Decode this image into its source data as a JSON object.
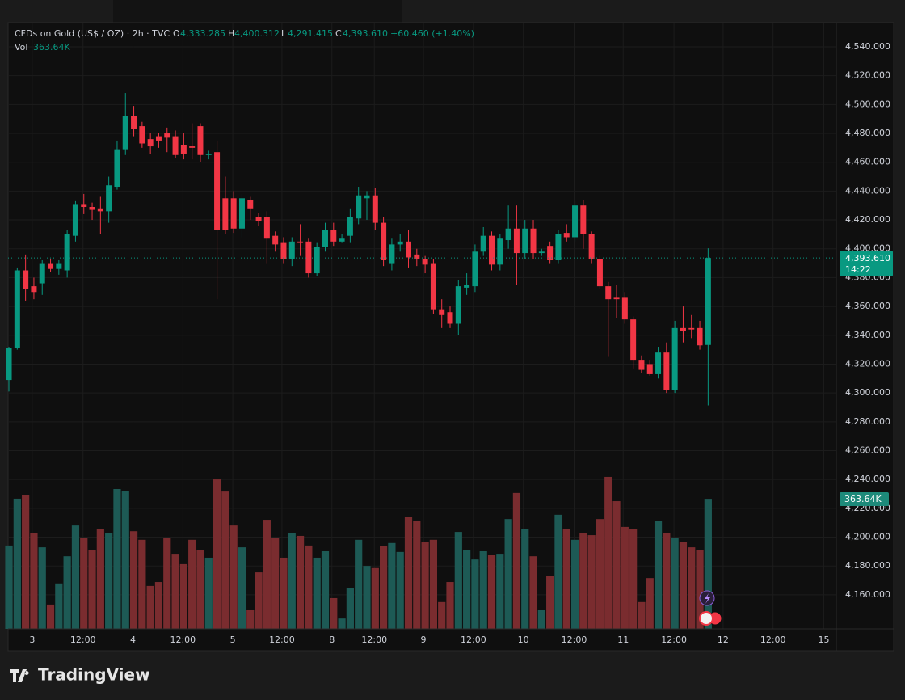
{
  "chart_data": {
    "type": "candlestick",
    "title": "CFDs on Gold (US$ / OZ) · 2h · TVC",
    "header": {
      "o_label": "O",
      "open": "4,333.285",
      "h_label": "H",
      "high": "4,400.312",
      "l_label": "L",
      "low": "4,291.415",
      "c_label": "C",
      "close": "4,393.610",
      "change": "+60.460 (+1.40%)",
      "vol_label": "Vol",
      "volume": "363.64K"
    },
    "last_price_label": "4,393.610",
    "countdown": "14:22",
    "brand": "TradingView",
    "up_color": "#089981",
    "down_color": "#f23645",
    "up_volume_color": "#1d5a55",
    "down_volume_color": "#7a2c2f",
    "grid": true,
    "open": [
      4309,
      4331,
      4385,
      4374,
      4376,
      4390,
      4386,
      4385,
      4409,
      4431,
      4429,
      4428,
      4426,
      4443,
      4469,
      4492,
      4485,
      4476,
      4478,
      4480,
      4478,
      4472,
      4471,
      4485,
      4465,
      4467,
      4435,
      4435,
      4414,
      4434,
      4422,
      4422,
      4409,
      4404,
      4393,
      4405,
      4405,
      4383,
      4401,
      4413,
      4405,
      4409,
      4421,
      4435,
      4437,
      4418,
      4390,
      4403,
      4405,
      4396,
      4393,
      4390,
      4358,
      4356,
      4348,
      4373,
      4374,
      4398,
      4409,
      4389,
      4406,
      4414,
      4397,
      4414,
      4397,
      4402,
      4392,
      4411,
      4408,
      4430,
      4410,
      4393,
      4374,
      4366,
      4366,
      4351,
      4323,
      4320,
      4313,
      4328,
      4302,
      4345,
      4345,
      4345,
      4333.285
    ],
    "high": [
      4332,
      4387,
      4396,
      4380,
      4392,
      4393,
      4392,
      4413,
      4433,
      4438,
      4432,
      4436,
      4450,
      4475,
      4508,
      4499,
      4488,
      4480,
      4480,
      4484,
      4482,
      4480,
      4487,
      4487,
      4468,
      4475,
      4450,
      4440,
      4438,
      4436,
      4425,
      4426,
      4412,
      4408,
      4408,
      4417,
      4407,
      4404,
      4418,
      4418,
      4410,
      4428,
      4443,
      4440,
      4442,
      4422,
      4407,
      4410,
      4413,
      4400,
      4395,
      4393,
      4365,
      4360,
      4378,
      4383,
      4403,
      4415,
      4412,
      4410,
      4430,
      4430,
      4420,
      4420,
      4400,
      4405,
      4413,
      4417,
      4433,
      4434,
      4412,
      4395,
      4377,
      4375,
      4370,
      4353,
      4326,
      4323,
      4332,
      4335,
      4350,
      4360,
      4354,
      4350,
      4400.312
    ],
    "low": [
      4301,
      4330,
      4364,
      4365,
      4368,
      4384,
      4382,
      4380,
      4405,
      4424,
      4420,
      4410,
      4418,
      4441,
      4465,
      4478,
      4470,
      4466,
      4470,
      4467,
      4463,
      4462,
      4462,
      4460,
      4462,
      4365,
      4410,
      4411,
      4408,
      4420,
      4416,
      4390,
      4398,
      4390,
      4388,
      4395,
      4380,
      4381,
      4398,
      4402,
      4404,
      4404,
      4417,
      4420,
      4413,
      4388,
      4385,
      4398,
      4387,
      4388,
      4383,
      4355,
      4345,
      4345,
      4340,
      4368,
      4370,
      4395,
      4385,
      4385,
      4400,
      4375,
      4393,
      4393,
      4395,
      4390,
      4390,
      4405,
      4405,
      4400,
      4390,
      4372,
      4325,
      4352,
      4348,
      4317,
      4314,
      4312,
      4310,
      4300,
      4300,
      4335,
      4338,
      4330,
      4291.415
    ],
    "close": [
      4331,
      4385,
      4372,
      4370,
      4390,
      4386,
      4390,
      4410,
      4431,
      4429,
      4427,
      4426,
      4444,
      4469,
      4492,
      4483,
      4473,
      4471,
      4475,
      4477,
      4465,
      4466,
      4470,
      4465,
      4466,
      4413,
      4413,
      4414,
      4435,
      4428,
      4419,
      4407,
      4403,
      4393,
      4405,
      4404,
      4383,
      4401,
      4413,
      4405,
      4407,
      4422,
      4437,
      4437,
      4418,
      4392,
      4403,
      4405,
      4394,
      4393,
      4389,
      4358,
      4354,
      4348,
      4374,
      4375,
      4398,
      4409,
      4389,
      4407,
      4414,
      4397,
      4414,
      4397,
      4398,
      4392,
      4410,
      4408,
      4430,
      4410,
      4393,
      4374,
      4365,
      4365,
      4351,
      4323,
      4316,
      4313,
      4328,
      4302,
      4345,
      4343,
      4344,
      4333,
      4393.61
    ],
    "volume": [
      233,
      364,
      373,
      267,
      228,
      68,
      127,
      203,
      289,
      255,
      221,
      278,
      267,
      391,
      386,
      273,
      249,
      120,
      131,
      255,
      210,
      181,
      249,
      221,
      199,
      418,
      384,
      289,
      228,
      52,
      158,
      305,
      255,
      199,
      267,
      260,
      233,
      199,
      217,
      86,
      29,
      113,
      249,
      176,
      170,
      231,
      240,
      215,
      312,
      301,
      244,
      249,
      75,
      131,
      271,
      221,
      194,
      217,
      206,
      210,
      307,
      380,
      278,
      203,
      52,
      149,
      319,
      278,
      249,
      267,
      262,
      307,
      425,
      357,
      285,
      278,
      75,
      142,
      301,
      267,
      255,
      244,
      228,
      221,
      363.64
    ],
    "ylim": [
      4136.4,
      4556.8
    ],
    "yticks": [
      {
        "value": 4160,
        "label": "4,160.000"
      },
      {
        "value": 4180,
        "label": "4,180.000"
      },
      {
        "value": 4200,
        "label": "4,200.000"
      },
      {
        "value": 4220,
        "label": "4,220.000"
      },
      {
        "value": 4240,
        "label": "4,240.000"
      },
      {
        "value": 4260,
        "label": "4,260.000"
      },
      {
        "value": 4280,
        "label": "4,280.000"
      },
      {
        "value": 4300,
        "label": "4,300.000"
      },
      {
        "value": 4320,
        "label": "4,320.000"
      },
      {
        "value": 4340,
        "label": "4,340.000"
      },
      {
        "value": 4360,
        "label": "4,360.000"
      },
      {
        "value": 4380,
        "label": "4,380.000"
      },
      {
        "value": 4400,
        "label": "4,400.000"
      },
      {
        "value": 4420,
        "label": "4,420.000"
      },
      {
        "value": 4440,
        "label": "4,440.000"
      },
      {
        "value": 4460,
        "label": "4,460.000"
      },
      {
        "value": 4480,
        "label": "4,480.000"
      },
      {
        "value": 4500,
        "label": "4,500.000"
      },
      {
        "value": 4520,
        "label": "4,520.000"
      },
      {
        "value": 4540,
        "label": "4,540.000"
      }
    ],
    "xlim": [
      -0.1,
      99.4
    ],
    "xticks": [
      {
        "value": 2.8,
        "label": "3"
      },
      {
        "value": 8.9,
        "label": "12:00"
      },
      {
        "value": 14.9,
        "label": "4"
      },
      {
        "value": 20.9,
        "label": "12:00"
      },
      {
        "value": 26.9,
        "label": "5"
      },
      {
        "value": 32.8,
        "label": "12:00"
      },
      {
        "value": 38.8,
        "label": "8"
      },
      {
        "value": 43.9,
        "label": "12:00"
      },
      {
        "value": 49.8,
        "label": "9"
      },
      {
        "value": 55.8,
        "label": "12:00"
      },
      {
        "value": 61.8,
        "label": "10"
      },
      {
        "value": 67.9,
        "label": "12:00"
      },
      {
        "value": 73.8,
        "label": "11"
      },
      {
        "value": 79.9,
        "label": "12:00"
      },
      {
        "value": 85.8,
        "label": "12"
      },
      {
        "value": 91.8,
        "label": "12:00"
      },
      {
        "value": 97.9,
        "label": "15"
      }
    ]
  }
}
